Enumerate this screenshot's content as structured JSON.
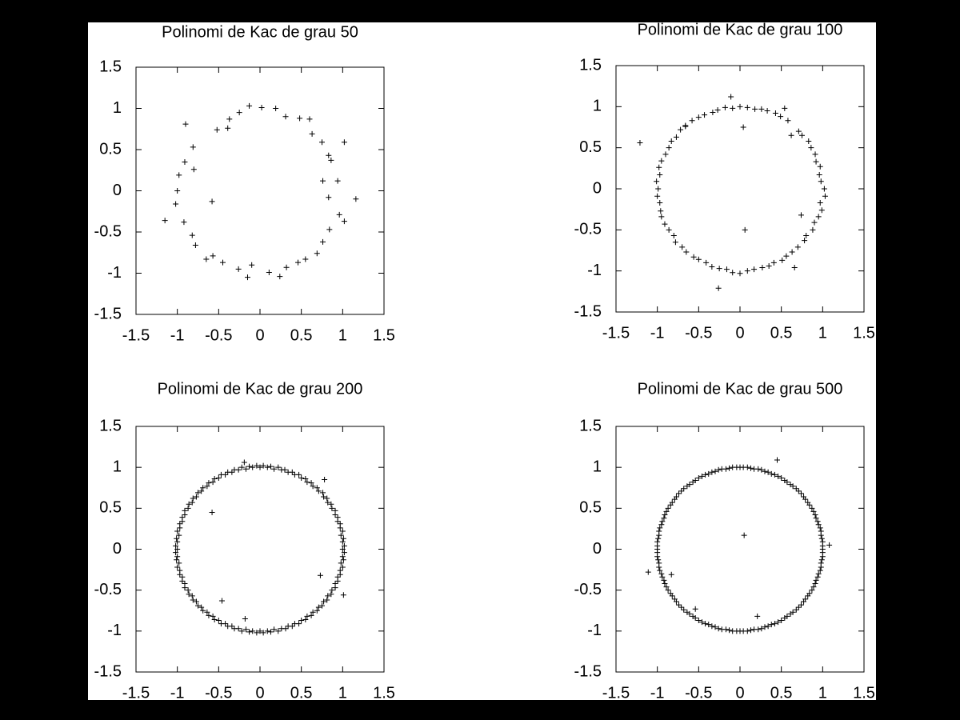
{
  "chart_data": [
    {
      "type": "scatter",
      "title": "Polinomi de Kac de grau 50",
      "color": "#000000",
      "marker": "+",
      "xlim": [
        -1.5,
        1.5
      ],
      "ylim": [
        -1.5,
        1.5
      ],
      "xticks": [
        -1.5,
        -1,
        -0.5,
        0,
        0.5,
        1,
        1.5
      ],
      "yticks": [
        -1.5,
        -1,
        -0.5,
        0,
        0.5,
        1,
        1.5
      ],
      "x": [
        -0.13,
        0.02,
        0.19,
        0.31,
        0.48,
        0.6,
        -0.25,
        -0.37,
        -0.39,
        -0.52,
        -0.9,
        -0.81,
        -0.91,
        -0.8,
        -0.98,
        -1.0,
        -1.02,
        -1.15,
        -0.92,
        -0.58,
        -0.82,
        -0.78,
        -0.65,
        -0.57,
        -0.45,
        -0.26,
        -0.15,
        -0.1,
        0.11,
        0.24,
        0.32,
        0.46,
        0.55,
        0.69,
        0.76,
        0.84,
        0.96,
        1.02,
        1.16,
        0.83,
        0.76,
        0.94,
        0.86,
        0.83,
        1.02,
        0.75,
        0.63
      ],
      "values": [
        1.03,
        1.01,
        1.0,
        0.9,
        0.88,
        0.87,
        0.95,
        0.87,
        0.76,
        0.74,
        0.81,
        0.53,
        0.35,
        0.26,
        0.19,
        0,
        -0.16,
        -0.36,
        -0.38,
        -0.13,
        -0.54,
        -0.66,
        -0.83,
        -0.79,
        -0.87,
        -0.95,
        -1.05,
        -0.9,
        -0.99,
        -1.04,
        -0.93,
        -0.87,
        -0.83,
        -0.76,
        -0.62,
        -0.47,
        -0.29,
        -0.37,
        -0.1,
        -0.08,
        0.12,
        0.12,
        0.37,
        0.43,
        0.59,
        0.59,
        0.69
      ]
    },
    {
      "type": "scatter",
      "title": "Polinomi de Kac de grau 100",
      "color": "#000000",
      "marker": "+",
      "xlim": [
        -1.5,
        1.5
      ],
      "ylim": [
        -1.5,
        1.5
      ],
      "xticks": [
        -1.5,
        -1,
        -0.5,
        0,
        0.5,
        1,
        1.5
      ],
      "yticks": [
        -1.5,
        -1,
        -0.5,
        0,
        0.5,
        1,
        1.5
      ],
      "x": [
        1.02,
        0.98,
        0.96,
        0.97,
        0.92,
        0.91,
        0.86,
        0.83,
        0.75,
        0.71,
        0.62,
        0.58,
        0.49,
        0.43,
        0.33,
        0.26,
        0.18,
        0.09,
        0,
        -0.09,
        -0.18,
        -0.27,
        -0.33,
        -0.43,
        -0.5,
        -0.58,
        -0.66,
        -0.72,
        -0.77,
        -0.83,
        -0.86,
        -0.9,
        -0.95,
        -0.98,
        -0.97,
        -1.01,
        -0.99,
        -1.0,
        -0.97,
        -0.96,
        -0.95,
        -0.91,
        -0.86,
        -0.8,
        -0.78,
        -0.7,
        -0.65,
        -0.56,
        -0.5,
        -0.41,
        -0.34,
        -0.25,
        -0.16,
        -0.09,
        0,
        0.09,
        0.17,
        0.27,
        0.35,
        0.41,
        0.51,
        0.56,
        0.63,
        0.7,
        0.78,
        0.8,
        0.88,
        0.9,
        0.95,
        0.99,
        0.97,
        1.03,
        -1.21,
        -0.11,
        0.04,
        0.06,
        -0.26,
        0.74,
        0.66,
        0.54,
        -0.66
      ],
      "values": [
        0,
        0.09,
        0.17,
        0.27,
        0.33,
        0.42,
        0.5,
        0.58,
        0.65,
        0.7,
        0.65,
        0.83,
        0.88,
        0.92,
        0.95,
        0.97,
        0.97,
        0.99,
        1.0,
        0.98,
        0.99,
        0.96,
        0.93,
        0.9,
        0.87,
        0.83,
        0.77,
        0.72,
        0.63,
        0.58,
        0.5,
        0.42,
        0.34,
        0.26,
        0.17,
        0.09,
        0,
        -0.09,
        -0.17,
        -0.27,
        -0.34,
        -0.43,
        -0.5,
        -0.57,
        -0.65,
        -0.71,
        -0.77,
        -0.83,
        -0.86,
        -0.9,
        -0.95,
        -0.97,
        -0.98,
        -1.02,
        -1.03,
        -1.0,
        -0.98,
        -0.96,
        -0.94,
        -0.9,
        -0.87,
        -0.82,
        -0.77,
        -0.71,
        -0.63,
        -0.57,
        -0.5,
        -0.41,
        -0.34,
        -0.26,
        -0.17,
        -0.09,
        0.56,
        1.12,
        0.75,
        -0.5,
        -1.21,
        -0.32,
        -0.96,
        0.98,
        0.76
      ]
    },
    {
      "type": "scatter",
      "title": "Polinomi de Kac de grau 200",
      "color": "#000000",
      "marker": "+",
      "xlim": [
        -1.5,
        1.5
      ],
      "ylim": [
        -1.5,
        1.5
      ],
      "xticks": [
        -1.5,
        -1,
        -0.5,
        0,
        0.5,
        1,
        1.5
      ],
      "yticks": [
        -1.5,
        -1,
        -0.5,
        0,
        0.5,
        1,
        1.5
      ],
      "x": [
        1,
        1,
        0.98,
        0.97,
        0.94,
        0.91,
        0.87,
        0.82,
        0.77,
        0.71,
        0.64,
        0.57,
        0.5,
        0.42,
        0.34,
        0.26,
        0.17,
        0.09,
        0,
        -0.09,
        -0.17,
        -0.26,
        -0.34,
        -0.42,
        -0.5,
        -0.57,
        -0.64,
        -0.71,
        -0.77,
        -0.82,
        -0.87,
        -0.91,
        -0.94,
        -0.97,
        -0.98,
        -1,
        -1,
        -1,
        -0.98,
        -0.97,
        -0.94,
        -0.91,
        -0.87,
        -0.82,
        -0.77,
        -0.71,
        -0.64,
        -0.57,
        -0.5,
        -0.42,
        -0.34,
        -0.26,
        -0.17,
        -0.09,
        0,
        0.09,
        0.17,
        0.26,
        0.34,
        0.42,
        0.5,
        0.57,
        0.64,
        0.71,
        0.77,
        0.82,
        0.87,
        0.91,
        0.94,
        0.97,
        0.98,
        1,
        1.02,
        1.01,
        1.0,
        0.97,
        0.94,
        0.91,
        0.86,
        0.81,
        0.76,
        0.69,
        0.62,
        0.55,
        0.47,
        0.39,
        0.3,
        0.22,
        0.13,
        0.04,
        -0.04,
        -0.13,
        -0.22,
        -0.31,
        -0.39,
        -0.47,
        -0.55,
        -0.62,
        -0.69,
        -0.75,
        -0.81,
        -0.86,
        -0.91,
        -0.94,
        -0.97,
        -1.0,
        -1.01,
        -1.02,
        -1.02,
        -1.01,
        -1.0,
        -0.97,
        -0.94,
        -0.91,
        -0.86,
        -0.81,
        -0.75,
        -0.69,
        -0.62,
        -0.55,
        -0.47,
        -0.39,
        -0.31,
        -0.22,
        -0.13,
        -0.04,
        0.04,
        0.13,
        0.22,
        0.31,
        0.39,
        0.47,
        0.55,
        0.62,
        0.69,
        0.75,
        0.81,
        0.86,
        0.91,
        0.94,
        0.97,
        1.0,
        1.01,
        1.02,
        -0.58,
        -0.46,
        -0.18,
        0.73,
        1.01,
        0.78,
        -0.19
      ],
      "values": [
        0,
        0.09,
        0.17,
        0.26,
        0.34,
        0.42,
        0.5,
        0.57,
        0.64,
        0.71,
        0.77,
        0.82,
        0.87,
        0.91,
        0.94,
        0.97,
        0.98,
        1,
        1,
        1,
        0.98,
        0.97,
        0.94,
        0.91,
        0.87,
        0.82,
        0.77,
        0.71,
        0.64,
        0.57,
        0.5,
        0.42,
        0.34,
        0.26,
        0.17,
        0.09,
        0,
        -0.09,
        -0.17,
        -0.26,
        -0.34,
        -0.42,
        -0.5,
        -0.57,
        -0.64,
        -0.71,
        -0.77,
        -0.82,
        -0.87,
        -0.91,
        -0.94,
        -0.97,
        -0.98,
        -1,
        -1,
        -1,
        -0.98,
        -0.97,
        -0.94,
        -0.91,
        -0.87,
        -0.82,
        -0.77,
        -0.71,
        -0.64,
        -0.57,
        -0.5,
        -0.42,
        -0.34,
        -0.26,
        -0.17,
        -0.09,
        0.04,
        0.13,
        0.22,
        0.31,
        0.39,
        0.47,
        0.55,
        0.62,
        0.69,
        0.75,
        0.81,
        0.86,
        0.91,
        0.94,
        0.97,
        1.0,
        1.01,
        1.02,
        1.02,
        1.01,
        1.0,
        0.97,
        0.94,
        0.91,
        0.86,
        0.81,
        0.75,
        0.69,
        0.62,
        0.55,
        0.47,
        0.39,
        0.31,
        0.22,
        0.13,
        0.04,
        -0.04,
        -0.13,
        -0.22,
        -0.31,
        -0.39,
        -0.47,
        -0.55,
        -0.62,
        -0.69,
        -0.75,
        -0.81,
        -0.86,
        -0.91,
        -0.94,
        -0.97,
        -1.0,
        -1.01,
        -1.02,
        -1.02,
        -1.01,
        -1.0,
        -0.97,
        -0.94,
        -0.91,
        -0.86,
        -0.81,
        -0.75,
        -0.69,
        -0.62,
        -0.55,
        -0.47,
        -0.39,
        -0.31,
        -0.22,
        -0.13,
        -0.04,
        0.45,
        -0.63,
        -0.85,
        -0.32,
        -0.56,
        0.85,
        1.06
      ]
    },
    {
      "type": "scatter",
      "title": "Polinomi de Kac de grau 500",
      "color": "#000000",
      "marker": "+",
      "xlim": [
        -1.5,
        1.5
      ],
      "ylim": [
        -1.5,
        1.5
      ],
      "xticks": [
        -1.5,
        -1,
        -0.5,
        0,
        0.5,
        1,
        1.5
      ],
      "yticks": [
        -1.5,
        -1,
        -0.5,
        0,
        0.5,
        1,
        1.5
      ],
      "x": [
        1,
        1,
        0.98,
        0.97,
        0.94,
        0.91,
        0.87,
        0.82,
        0.77,
        0.71,
        0.64,
        0.57,
        0.5,
        0.42,
        0.34,
        0.26,
        0.17,
        0.09,
        0,
        -0.09,
        -0.17,
        -0.26,
        -0.34,
        -0.42,
        -0.5,
        -0.57,
        -0.64,
        -0.71,
        -0.77,
        -0.82,
        -0.87,
        -0.91,
        -0.94,
        -0.97,
        -0.98,
        -1,
        -1,
        -1,
        -0.98,
        -0.97,
        -0.94,
        -0.91,
        -0.87,
        -0.82,
        -0.77,
        -0.71,
        -0.64,
        -0.57,
        -0.5,
        -0.42,
        -0.34,
        -0.26,
        -0.17,
        -0.09,
        0,
        0.09,
        0.17,
        0.26,
        0.34,
        0.42,
        0.5,
        0.57,
        0.64,
        0.71,
        0.77,
        0.82,
        0.87,
        0.91,
        0.94,
        0.97,
        0.98,
        1,
        1,
        0.99,
        0.98,
        0.95,
        0.92,
        0.89,
        0.84,
        0.79,
        0.74,
        0.68,
        0.61,
        0.54,
        0.46,
        0.38,
        0.3,
        0.22,
        0.13,
        0.04,
        -0.04,
        -0.13,
        -0.22,
        -0.3,
        -0.38,
        -0.46,
        -0.54,
        -0.61,
        -0.68,
        -0.74,
        -0.79,
        -0.84,
        -0.89,
        -0.92,
        -0.95,
        -0.98,
        -0.99,
        -1,
        -1,
        -0.99,
        -0.98,
        -0.95,
        -0.92,
        -0.89,
        -0.84,
        -0.79,
        -0.74,
        -0.68,
        -0.61,
        -0.54,
        -0.46,
        -0.38,
        -0.3,
        -0.22,
        -0.13,
        -0.04,
        0.04,
        0.13,
        0.22,
        0.3,
        0.38,
        0.46,
        0.54,
        0.61,
        0.68,
        0.74,
        0.79,
        0.84,
        0.89,
        0.92,
        0.95,
        0.98,
        0.99,
        1,
        0.45,
        0.05,
        -1.11,
        -0.83,
        0.21,
        1.08,
        -0.54
      ],
      "values": [
        0,
        0.09,
        0.17,
        0.26,
        0.34,
        0.42,
        0.5,
        0.57,
        0.64,
        0.71,
        0.77,
        0.82,
        0.87,
        0.91,
        0.94,
        0.97,
        0.98,
        1,
        1,
        1,
        0.98,
        0.97,
        0.94,
        0.91,
        0.87,
        0.82,
        0.77,
        0.71,
        0.64,
        0.57,
        0.5,
        0.42,
        0.34,
        0.26,
        0.17,
        0.09,
        0,
        -0.09,
        -0.17,
        -0.26,
        -0.34,
        -0.42,
        -0.5,
        -0.57,
        -0.64,
        -0.71,
        -0.77,
        -0.82,
        -0.87,
        -0.91,
        -0.94,
        -0.97,
        -0.98,
        -1,
        -1,
        -1,
        -0.98,
        -0.97,
        -0.94,
        -0.91,
        -0.87,
        -0.82,
        -0.77,
        -0.71,
        -0.64,
        -0.57,
        -0.5,
        -0.42,
        -0.34,
        -0.26,
        -0.17,
        -0.09,
        0.04,
        0.13,
        0.22,
        0.3,
        0.38,
        0.46,
        0.54,
        0.61,
        0.68,
        0.74,
        0.79,
        0.84,
        0.89,
        0.92,
        0.95,
        0.98,
        0.99,
        1,
        1,
        0.99,
        0.98,
        0.95,
        0.92,
        0.89,
        0.84,
        0.79,
        0.74,
        0.68,
        0.61,
        0.54,
        0.46,
        0.38,
        0.3,
        0.22,
        0.13,
        0.04,
        -0.04,
        -0.13,
        -0.22,
        -0.3,
        -0.38,
        -0.46,
        -0.54,
        -0.61,
        -0.68,
        -0.74,
        -0.79,
        -0.84,
        -0.89,
        -0.92,
        -0.95,
        -0.98,
        -0.99,
        -1,
        -1,
        -0.99,
        -0.98,
        -0.95,
        -0.92,
        -0.89,
        -0.84,
        -0.79,
        -0.74,
        -0.68,
        -0.61,
        -0.54,
        -0.46,
        -0.38,
        -0.3,
        -0.22,
        -0.13,
        -0.04,
        1.09,
        0.17,
        -0.28,
        -0.31,
        -0.82,
        0.05,
        -0.73
      ]
    }
  ]
}
